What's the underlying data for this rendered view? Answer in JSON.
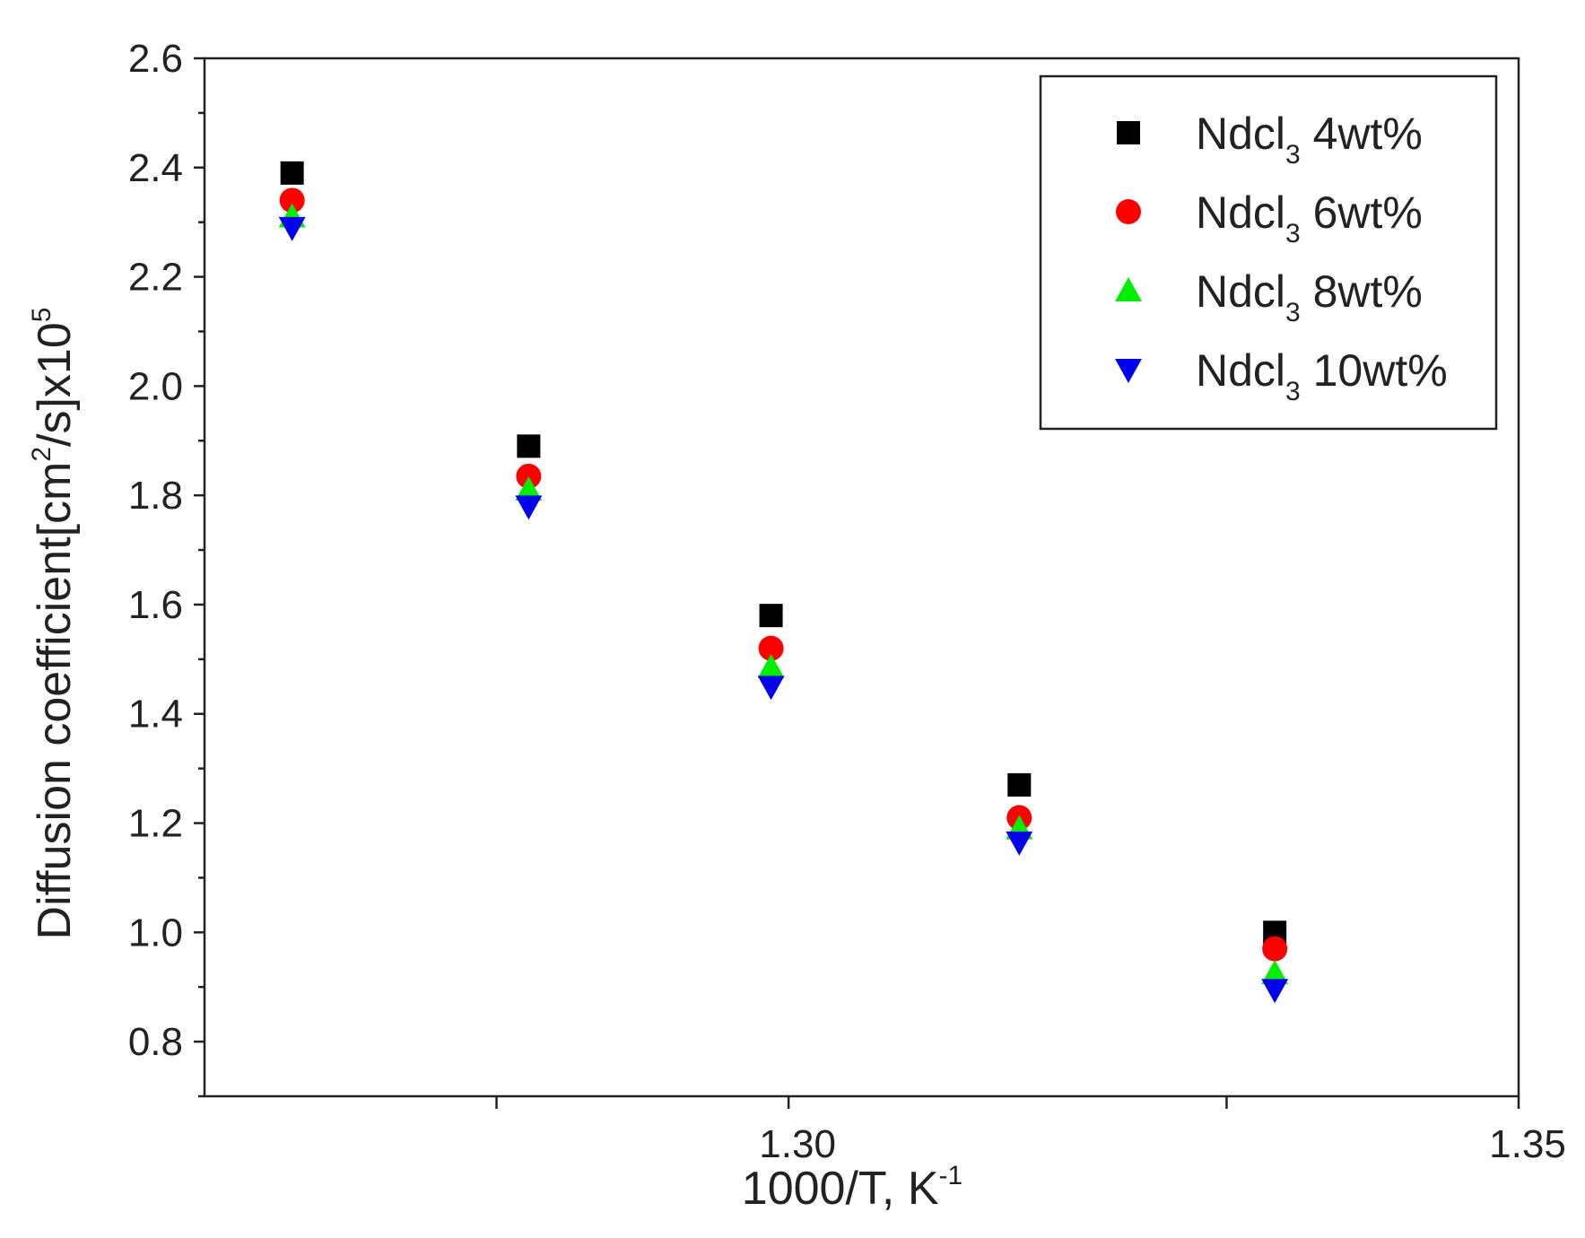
{
  "chart_data": {
    "type": "scatter",
    "xlabel": {
      "main": "1000/T, K",
      "sup": "-1"
    },
    "ylabel": {
      "part1": "Diffusion coefficient[cm",
      "sup1": "2",
      "part2": "/s]x10",
      "sup2": "5"
    },
    "xlim": [
      1.26,
      1.35
    ],
    "ylim": [
      0.7,
      2.6
    ],
    "x_ticks": [
      {
        "value": 1.28,
        "label": ""
      },
      {
        "value": 1.3,
        "label": "1.30"
      },
      {
        "value": 1.33,
        "label": ""
      },
      {
        "value": 1.35,
        "label": "1.35"
      }
    ],
    "y_ticks": [
      "0.8",
      "1.0",
      "1.2",
      "1.4",
      "1.6",
      "1.8",
      "2.0",
      "2.2",
      "2.4",
      "2.6"
    ],
    "legend_position": "top-right",
    "grid": false,
    "x": [
      1.266,
      1.2822,
      1.2988,
      1.3158,
      1.3333
    ],
    "series": [
      {
        "name_main": "Ndcl",
        "name_sub": "3",
        "name_tail": " 4wt%",
        "marker": "square",
        "color": "#000000",
        "values": [
          2.39,
          1.89,
          1.58,
          1.27,
          1.0
        ]
      },
      {
        "name_main": "Ndcl",
        "name_sub": "3",
        "name_tail": " 6wt%",
        "marker": "circle",
        "color": "#ff0000",
        "values": [
          2.34,
          1.835,
          1.52,
          1.21,
          0.97
        ]
      },
      {
        "name_main": "Ndcl",
        "name_sub": "3",
        "name_tail": " 8wt%",
        "marker": "triangle-up",
        "color": "#00ee00",
        "values": [
          2.31,
          1.81,
          1.485,
          1.19,
          0.925
        ]
      },
      {
        "name_main": "Ndcl",
        "name_sub": "3",
        "name_tail": " 10wt%",
        "marker": "triangle-down",
        "color": "#0000ee",
        "values": [
          2.29,
          1.78,
          1.45,
          1.165,
          0.895
        ]
      }
    ]
  }
}
